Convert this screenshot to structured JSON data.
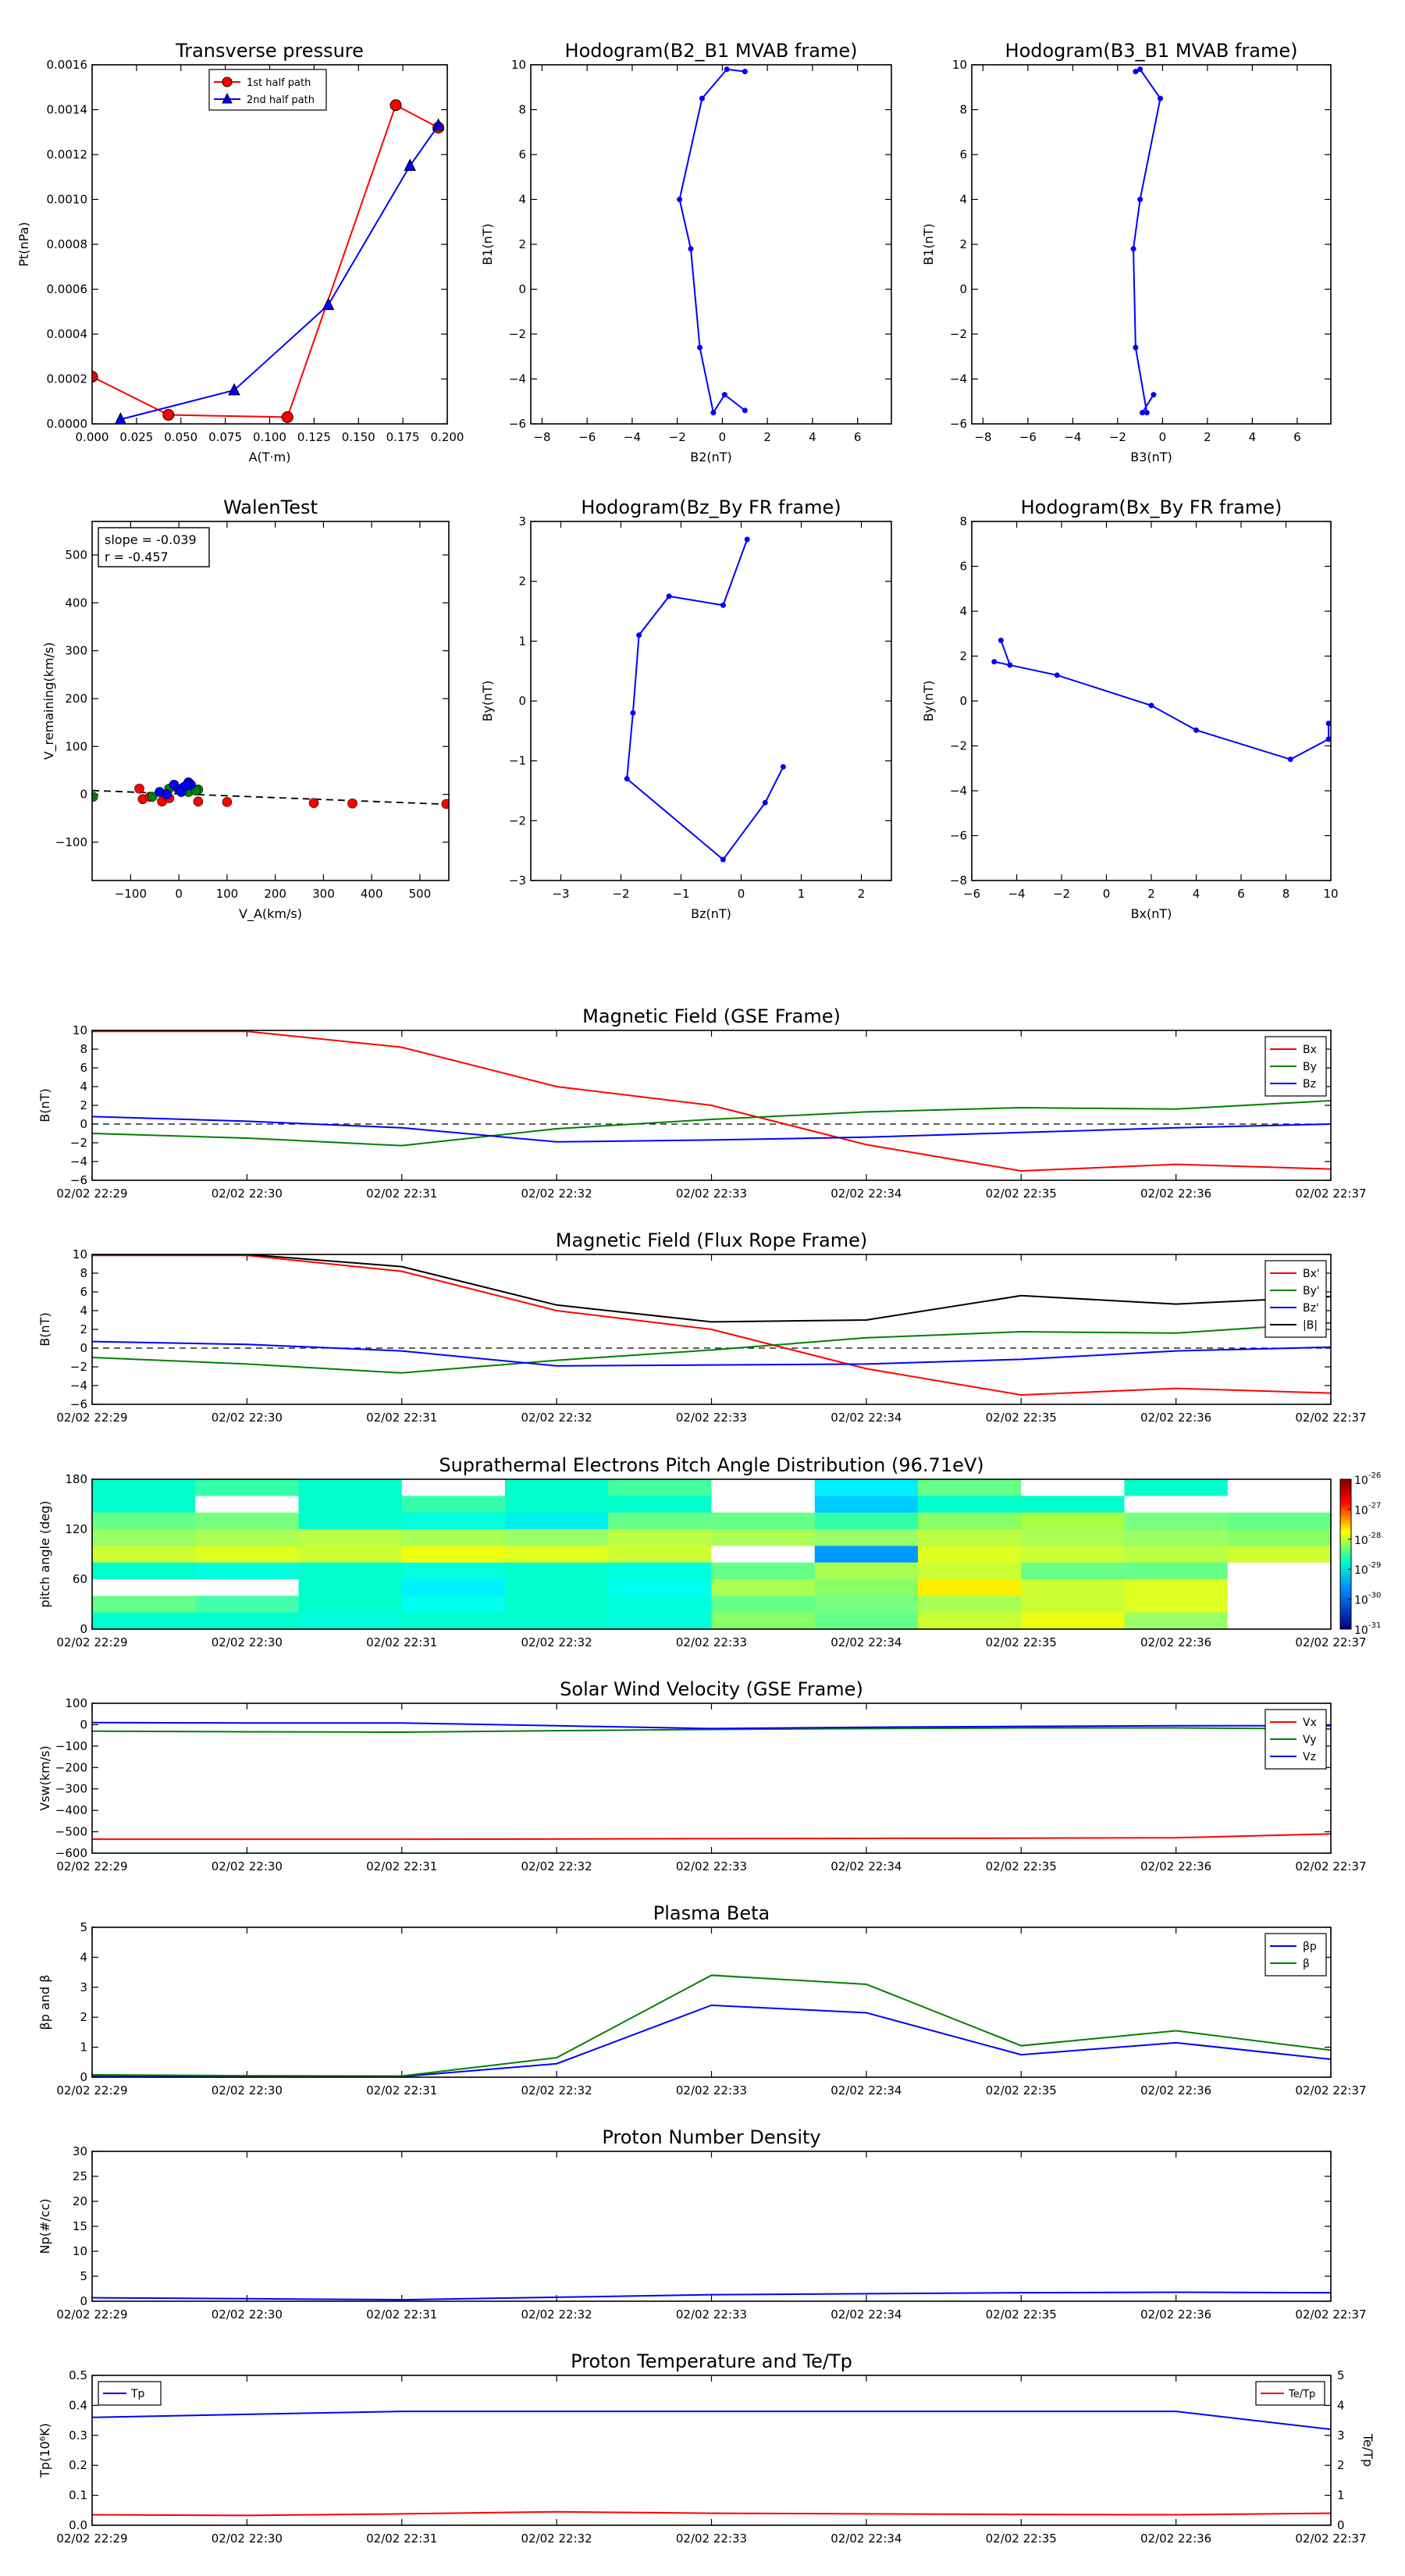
{
  "chart_data": [
    {
      "id": "tp",
      "type": "line",
      "title": "Transverse pressure",
      "xlabel": "A(T·m)",
      "ylabel": "Pt(nPa)",
      "xlim": [
        0,
        0.2
      ],
      "ylim": [
        0,
        0.0016
      ],
      "xticks": [
        0,
        0.025,
        0.05,
        0.075,
        0.1,
        0.125,
        0.15,
        0.175,
        0.2
      ],
      "xtick_labels": [
        "0.000",
        "0.025",
        "0.050",
        "0.075",
        "0.100",
        "0.125",
        "0.150",
        "0.175",
        "0.200"
      ],
      "yticks": [
        0,
        0.0002,
        0.0004,
        0.0006,
        0.0008,
        0.001,
        0.0012,
        0.0014,
        0.0016
      ],
      "ytick_labels": [
        "0.0000",
        "0.0002",
        "0.0004",
        "0.0006",
        "0.0008",
        "0.0010",
        "0.0012",
        "0.0014",
        "0.0016"
      ],
      "legend": "top-center",
      "series": [
        {
          "name": "1st half path",
          "color": "#ff0000",
          "marker": "circle",
          "x": [
            0.0,
            0.043,
            0.11,
            0.171,
            0.195
          ],
          "y": [
            0.00021,
            4e-05,
            3e-05,
            0.00142,
            0.00132
          ]
        },
        {
          "name": "2nd half path",
          "color": "#0000ff",
          "marker": "triangle",
          "x": [
            0.016,
            0.08,
            0.133,
            0.179,
            0.195
          ],
          "y": [
            2e-05,
            0.00015,
            0.00053,
            0.00115,
            0.00133
          ]
        }
      ]
    },
    {
      "id": "h21",
      "type": "line",
      "title": "Hodogram(B2_B1 MVAB frame)",
      "xlabel": "B2(nT)",
      "ylabel": "B1(nT)",
      "xlim": [
        -8.5,
        7.5
      ],
      "ylim": [
        -6,
        10
      ],
      "xticks": [
        -8,
        -6,
        -4,
        -2,
        0,
        2,
        4,
        6
      ],
      "xtick_labels": [
        "−8",
        "−6",
        "−4",
        "−2",
        "0",
        "2",
        "4",
        "6"
      ],
      "yticks": [
        -6,
        -4,
        -2,
        0,
        2,
        4,
        6,
        8,
        10
      ],
      "ytick_labels": [
        "−6",
        "−4",
        "−2",
        "0",
        "2",
        "4",
        "6",
        "8",
        "10"
      ],
      "series": [
        {
          "name": "hodogram",
          "color": "#0000ff",
          "marker": "dot",
          "x": [
            1.0,
            0.1,
            -0.4,
            -1.0,
            -1.4,
            -1.9,
            -0.9,
            0.2,
            1.0
          ],
          "y": [
            -5.4,
            -4.7,
            -5.5,
            -2.6,
            1.8,
            4.0,
            8.5,
            9.8,
            9.7
          ]
        }
      ]
    },
    {
      "id": "h31",
      "type": "line",
      "title": "Hodogram(B3_B1 MVAB frame)",
      "xlabel": "B3(nT)",
      "ylabel": "B1(nT)",
      "xlim": [
        -8.5,
        7.5
      ],
      "ylim": [
        -6,
        10
      ],
      "xticks": [
        -8,
        -6,
        -4,
        -2,
        0,
        2,
        4,
        6
      ],
      "xtick_labels": [
        "−8",
        "−6",
        "−4",
        "−2",
        "0",
        "2",
        "4",
        "6"
      ],
      "yticks": [
        -6,
        -4,
        -2,
        0,
        2,
        4,
        6,
        8,
        10
      ],
      "ytick_labels": [
        "−6",
        "−4",
        "−2",
        "0",
        "2",
        "4",
        "6",
        "8",
        "10"
      ],
      "series": [
        {
          "name": "hodogram",
          "color": "#0000ff",
          "marker": "dot",
          "x": [
            -0.4,
            -0.9,
            -0.7,
            -1.2,
            -1.3,
            -1.0,
            -0.1,
            -1.0,
            -1.2
          ],
          "y": [
            -4.7,
            -5.5,
            -5.5,
            -2.6,
            1.8,
            4.0,
            8.5,
            9.8,
            9.7
          ]
        }
      ]
    },
    {
      "id": "walen",
      "type": "scatter",
      "title": "WalenTest",
      "xlabel": "V_A(km/s)",
      "ylabel": "V_remaining(km/s)",
      "xlim": [
        -180,
        560
      ],
      "ylim": [
        -180,
        570
      ],
      "xticks": [
        -100,
        0,
        100,
        200,
        300,
        400,
        500
      ],
      "xtick_labels": [
        "−100",
        "0",
        "100",
        "200",
        "300",
        "400",
        "500"
      ],
      "yticks": [
        -100,
        0,
        100,
        200,
        300,
        400,
        500
      ],
      "ytick_labels": [
        "−100",
        "0",
        "100",
        "200",
        "300",
        "400",
        "500"
      ],
      "annotation": [
        "slope = -0.039",
        "r = -0.457"
      ],
      "fit_line": {
        "x": [
          -180,
          560
        ],
        "y": [
          8,
          -21
        ]
      },
      "points_red": {
        "x": [
          -82,
          -75,
          -60,
          -35,
          -20,
          40,
          100,
          280,
          360,
          555
        ],
        "y": [
          12,
          -10,
          -5,
          -15,
          -8,
          -15,
          -16,
          -18,
          -19,
          -20
        ]
      },
      "points_green": {
        "x": [
          -178,
          -55,
          40,
          20,
          35,
          -20
        ],
        "y": [
          -5,
          -5,
          10,
          5,
          8,
          12
        ]
      },
      "points_blue": {
        "x": [
          -40,
          -10,
          0,
          10,
          20,
          25,
          -25,
          5,
          15
        ],
        "y": [
          5,
          20,
          10,
          15,
          25,
          20,
          0,
          5,
          18
        ]
      }
    },
    {
      "id": "hzy",
      "type": "line",
      "title": "Hodogram(Bz_By FR frame)",
      "xlabel": "Bz(nT)",
      "ylabel": "By(nT)",
      "xlim": [
        -3.5,
        2.5
      ],
      "ylim": [
        -3,
        3
      ],
      "xticks": [
        -3,
        -2,
        -1,
        0,
        1,
        2
      ],
      "xtick_labels": [
        "−3",
        "−2",
        "−1",
        "0",
        "1",
        "2"
      ],
      "yticks": [
        -3,
        -2,
        -1,
        0,
        1,
        2,
        3
      ],
      "ytick_labels": [
        "−3",
        "−2",
        "−1",
        "0",
        "1",
        "2",
        "3"
      ],
      "series": [
        {
          "name": "hodogram",
          "color": "#0000ff",
          "marker": "dot",
          "x": [
            0.7,
            0.4,
            -0.3,
            -1.9,
            -1.8,
            -1.7,
            -1.2,
            -0.3,
            0.1
          ],
          "y": [
            -1.1,
            -1.7,
            -2.65,
            -1.3,
            -0.2,
            1.1,
            1.75,
            1.6,
            2.7
          ]
        }
      ]
    },
    {
      "id": "hxy",
      "type": "line",
      "title": "Hodogram(Bx_By FR frame)",
      "xlabel": "Bx(nT)",
      "ylabel": "By(nT)",
      "xlim": [
        -6,
        10
      ],
      "ylim": [
        -8,
        8
      ],
      "xticks": [
        -6,
        -4,
        -2,
        0,
        2,
        4,
        6,
        8,
        10
      ],
      "xtick_labels": [
        "−6",
        "−4",
        "−2",
        "0",
        "2",
        "4",
        "6",
        "8",
        "10"
      ],
      "yticks": [
        -8,
        -6,
        -4,
        -2,
        0,
        2,
        4,
        6,
        8
      ],
      "ytick_labels": [
        "−8",
        "−6",
        "−4",
        "−2",
        "0",
        "2",
        "4",
        "6",
        "8"
      ],
      "series": [
        {
          "name": "hodogram",
          "color": "#0000ff",
          "marker": "dot",
          "x": [
            -4.7,
            -4.3,
            -5.0,
            -2.2,
            2.0,
            4.0,
            8.2,
            9.9,
            9.9
          ],
          "y": [
            2.7,
            1.6,
            1.75,
            1.15,
            -0.2,
            -1.3,
            -2.6,
            -1.7,
            -1.0
          ]
        }
      ]
    },
    {
      "id": "bgse",
      "type": "line",
      "title": "Magnetic Field (GSE Frame)",
      "ylabel": "B(nT)",
      "ylim": [
        -6,
        10
      ],
      "yticks": [
        -6,
        -4,
        -2,
        0,
        2,
        4,
        6,
        8,
        10
      ],
      "ytick_labels": [
        "−6",
        "−4",
        "−2",
        "0",
        "2",
        "4",
        "6",
        "8",
        "10"
      ],
      "zero_line": true,
      "legend": "top-right",
      "series": [
        {
          "name": "Bx",
          "color": "#ff0000",
          "values": [
            9.9,
            9.9,
            8.2,
            4.0,
            2.0,
            -2.2,
            -5.0,
            -4.3,
            -4.8
          ]
        },
        {
          "name": "By",
          "color": "#008000",
          "values": [
            -1.0,
            -1.5,
            -2.3,
            -0.5,
            0.5,
            1.3,
            1.75,
            1.6,
            2.5
          ]
        },
        {
          "name": "Bz",
          "color": "#0000ff",
          "values": [
            0.8,
            0.3,
            -0.4,
            -1.9,
            -1.7,
            -1.4,
            -0.9,
            -0.4,
            0.0
          ]
        }
      ]
    },
    {
      "id": "bfr",
      "type": "line",
      "title": "Magnetic Field (Flux Rope Frame)",
      "ylabel": "B(nT)",
      "ylim": [
        -6,
        10
      ],
      "yticks": [
        -6,
        -4,
        -2,
        0,
        2,
        4,
        6,
        8,
        10
      ],
      "ytick_labels": [
        "−6",
        "−4",
        "−2",
        "0",
        "2",
        "4",
        "6",
        "8",
        "10"
      ],
      "zero_line": true,
      "legend": "top-right",
      "series": [
        {
          "name": "Bx'",
          "color": "#ff0000",
          "values": [
            9.9,
            9.9,
            8.2,
            4.0,
            2.0,
            -2.2,
            -5.0,
            -4.3,
            -4.8
          ]
        },
        {
          "name": "By'",
          "color": "#008000",
          "values": [
            -1.0,
            -1.7,
            -2.65,
            -1.3,
            -0.2,
            1.1,
            1.75,
            1.6,
            2.7
          ]
        },
        {
          "name": "Bz'",
          "color": "#0000ff",
          "values": [
            0.7,
            0.4,
            -0.3,
            -1.9,
            -1.8,
            -1.7,
            -1.2,
            -0.3,
            0.1
          ]
        },
        {
          "name": "|B|",
          "color": "#000000",
          "values": [
            10.0,
            10.0,
            8.7,
            4.6,
            2.8,
            3.0,
            5.6,
            4.7,
            5.5
          ]
        }
      ]
    },
    {
      "id": "pad",
      "type": "heatmap",
      "title": "Suprathermal Electrons Pitch Angle Distribution (96.71eV)",
      "ylabel": "pitch angle (deg)",
      "ylim": [
        0,
        180
      ],
      "yticks": [
        0,
        60,
        120,
        180
      ],
      "ytick_labels": [
        "0",
        "60",
        "120",
        "180"
      ],
      "colorbar_ticks": [
        "10",
        "10",
        "10",
        "10",
        "10",
        "10"
      ],
      "colorbar_exps": [
        "-26",
        "-27",
        "-28",
        "-29",
        "-30",
        "-31"
      ],
      "cells": [
        [
          "#00ffcc",
          "#33ffaa",
          "#00ffcc",
          "#ffffff",
          "#00ffcc",
          "#44ffa0",
          "#ffffff",
          "#00f0ff",
          "#66ff88",
          "#ffffff",
          "#00ffcc",
          "#ffffff"
        ],
        [
          "#00ffcc",
          "#ffffff",
          "#00ffcc",
          "#33ffaa",
          "#00ffcc",
          "#00ffcc",
          "#ffffff",
          "#00ccff",
          "#00ffcc",
          "#00ffcc",
          "#ffffff",
          "#ffffff"
        ],
        [
          "#66ff88",
          "#77ff80",
          "#00ffcc",
          "#00ffdd",
          "#00f0ee",
          "#66ff88",
          "#66ff88",
          "#33ffaa",
          "#88ff66",
          "#aaff44",
          "#77ff80",
          "#66ff88"
        ],
        [
          "#99ff66",
          "#aaff55",
          "#bbff44",
          "#aaff55",
          "#99ff66",
          "#bbff44",
          "#aaff55",
          "#99ff66",
          "#bbff44",
          "#aaff55",
          "#99ff66",
          "#88ff66"
        ],
        [
          "#ccff33",
          "#ddff22",
          "#ccff33",
          "#eeff11",
          "#ddff22",
          "#ccff33",
          "#ffffff",
          "#0099ff",
          "#ddff22",
          "#ccff33",
          "#bbff44",
          "#ccff33"
        ],
        [
          "#00ffcc",
          "#00ffdd",
          "#00ffcc",
          "#00ffdd",
          "#00ffcc",
          "#00ffdd",
          "#66ff88",
          "#aaff55",
          "#ccff33",
          "#66ff88",
          "#66ff88",
          "#ffffff"
        ],
        [
          "#ffffff",
          "#ffffff",
          "#00ffcc",
          "#00f0ff",
          "#00ffcc",
          "#00ffee",
          "#aaff55",
          "#88ff66",
          "#ffee00",
          "#ccff33",
          "#ddff22",
          "#ffffff"
        ],
        [
          "#66ff88",
          "#44ffaa",
          "#00ffcc",
          "#00ffee",
          "#00ffcc",
          "#00ffdd",
          "#66ff88",
          "#77ff80",
          "#aaff55",
          "#ccff33",
          "#ddff22",
          "#ffffff"
        ],
        [
          "#00ffcc",
          "#00ffcc",
          "#00ffdd",
          "#00ffcc",
          "#00ffcc",
          "#00ffdd",
          "#88ff66",
          "#66ff88",
          "#ccff33",
          "#eeff11",
          "#99ff66",
          "#ffffff"
        ]
      ]
    },
    {
      "id": "vsw",
      "type": "line",
      "title": "Solar Wind Velocity (GSE Frame)",
      "ylabel": "Vsw(km/s)",
      "ylim": [
        -600,
        100
      ],
      "yticks": [
        -600,
        -500,
        -400,
        -300,
        -200,
        -100,
        0,
        100
      ],
      "ytick_labels": [
        "−600",
        "−500",
        "−400",
        "−300",
        "−200",
        "−100",
        "0",
        "100"
      ],
      "legend": "top-right",
      "series": [
        {
          "name": "Vx",
          "color": "#ff0000",
          "values": [
            -535,
            -535,
            -535,
            -534,
            -532,
            -531,
            -530,
            -528,
            -510
          ]
        },
        {
          "name": "Vy",
          "color": "#008000",
          "values": [
            -30,
            -33,
            -35,
            -28,
            -22,
            -18,
            -15,
            -15,
            -20
          ]
        },
        {
          "name": "Vz",
          "color": "#0000ff",
          "values": [
            10,
            8,
            8,
            -5,
            -18,
            -12,
            -8,
            -5,
            -5
          ]
        }
      ]
    },
    {
      "id": "beta",
      "type": "line",
      "title": "Plasma Beta",
      "ylabel": "βp and β",
      "ylim": [
        0,
        5
      ],
      "yticks": [
        0,
        1,
        2,
        3,
        4,
        5
      ],
      "ytick_labels": [
        "0",
        "1",
        "2",
        "3",
        "4",
        "5"
      ],
      "legend": "top-right",
      "series": [
        {
          "name": "βp",
          "color": "#0000ff",
          "values": [
            0.05,
            0.03,
            0.02,
            0.45,
            2.4,
            2.15,
            0.75,
            1.15,
            0.6
          ]
        },
        {
          "name": "β",
          "color": "#008000",
          "values": [
            0.08,
            0.05,
            0.04,
            0.65,
            3.4,
            3.1,
            1.05,
            1.55,
            0.9
          ]
        }
      ]
    },
    {
      "id": "np",
      "type": "line",
      "title": "Proton Number Density",
      "ylabel": "Np(#/cc)",
      "ylim": [
        0,
        30
      ],
      "yticks": [
        0,
        5,
        10,
        15,
        20,
        25,
        30
      ],
      "ytick_labels": [
        "0",
        "5",
        "10",
        "15",
        "20",
        "25",
        "30"
      ],
      "series": [
        {
          "name": "Np",
          "color": "#0000ff",
          "values": [
            0.7,
            0.5,
            0.3,
            0.8,
            1.3,
            1.5,
            1.7,
            1.8,
            1.7
          ]
        }
      ]
    },
    {
      "id": "tp2",
      "type": "line",
      "title": "Proton Temperature and Te/Tp",
      "ylabel": "Tp(10⁶K)",
      "ylim": [
        0,
        0.5
      ],
      "yticks": [
        0,
        0.1,
        0.2,
        0.3,
        0.4,
        0.5
      ],
      "ytick_labels": [
        "0.0",
        "0.1",
        "0.2",
        "0.3",
        "0.4",
        "0.5"
      ],
      "y2label": "Te/Tp",
      "y2lim": [
        0,
        5
      ],
      "y2ticks": [
        0,
        1,
        2,
        3,
        4,
        5
      ],
      "y2tick_labels": [
        "0",
        "1",
        "2",
        "3",
        "4",
        "5"
      ],
      "legend_left": "Tp",
      "legend_right": "Te/Tp",
      "series": [
        {
          "name": "Tp",
          "color": "#0000ff",
          "values": [
            0.36,
            0.37,
            0.38,
            0.38,
            0.38,
            0.38,
            0.38,
            0.38,
            0.32
          ]
        },
        {
          "name": "Te/Tp",
          "color": "#ff0000",
          "axis": "right",
          "values": [
            0.35,
            0.33,
            0.38,
            0.45,
            0.4,
            0.38,
            0.36,
            0.35,
            0.4
          ]
        }
      ]
    }
  ],
  "time_labels": [
    "02/02 22:29",
    "02/02 22:30",
    "02/02 22:31",
    "02/02 22:32",
    "02/02 22:33",
    "02/02 22:34",
    "02/02 22:35",
    "02/02 22:36",
    "02/02 22:37"
  ]
}
